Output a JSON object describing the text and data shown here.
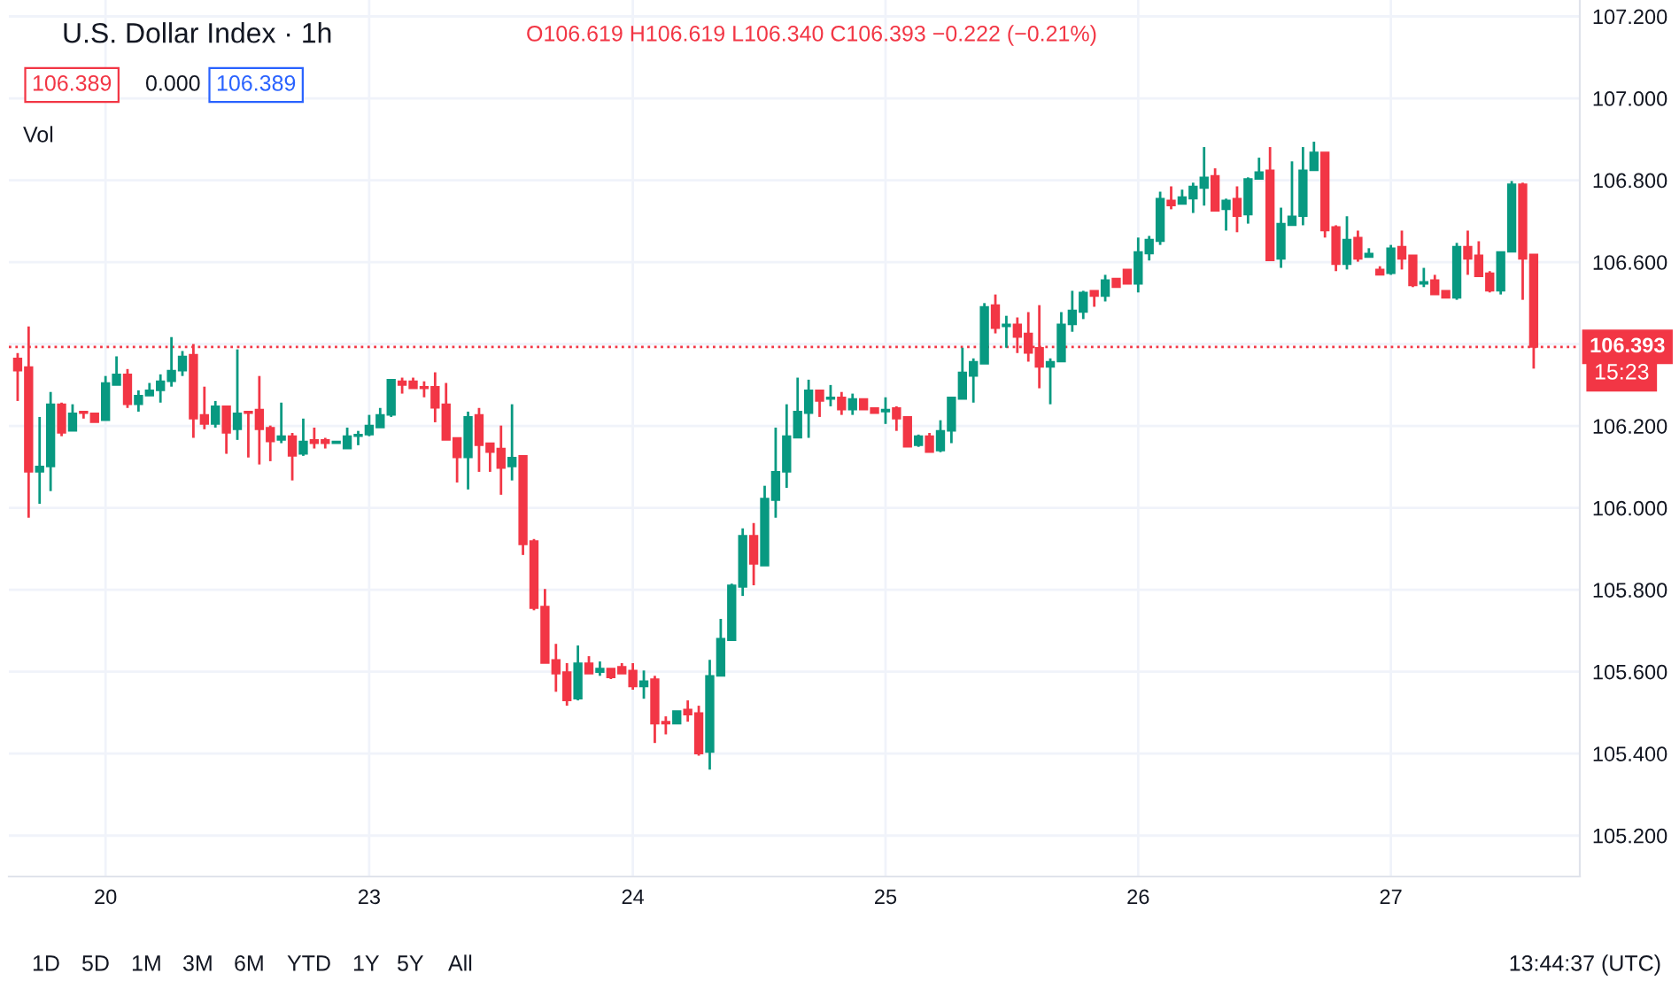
{
  "chart_data": {
    "type": "candlestick",
    "title": "U.S. Dollar Index · 1h",
    "categories": [
      null,
      null,
      null,
      null,
      null,
      null,
      null,
      null,
      "20",
      null,
      null,
      null,
      null,
      null,
      null,
      null,
      null,
      null,
      null,
      null,
      null,
      null,
      null,
      null,
      null,
      null,
      null,
      null,
      null,
      null,
      null,
      null,
      "23",
      null,
      null,
      null,
      null,
      null,
      null,
      null,
      null,
      null,
      null,
      null,
      null,
      null,
      null,
      null,
      null,
      null,
      null,
      null,
      null,
      null,
      null,
      null,
      "24",
      null,
      null,
      null,
      null,
      null,
      null,
      null,
      null,
      null,
      null,
      null,
      null,
      null,
      null,
      null,
      null,
      null,
      null,
      null,
      null,
      null,
      null,
      "25",
      null,
      null,
      null,
      null,
      null,
      null,
      null,
      null,
      null,
      null,
      null,
      null,
      null,
      null,
      null,
      null,
      null,
      null,
      null,
      null,
      null,
      null,
      "26",
      null,
      null,
      null,
      null,
      null,
      null,
      null,
      null,
      null,
      null,
      null,
      null,
      null,
      null,
      null,
      null,
      null,
      null,
      null,
      null,
      null,
      null,
      "27",
      null,
      null,
      null,
      null,
      null,
      null,
      null,
      null,
      null,
      null,
      null,
      null,
      null
    ],
    "ohlc": [
      [
        106.365,
        106.378,
        106.261,
        106.335
      ],
      [
        106.344,
        106.443,
        105.976,
        106.088
      ],
      [
        106.088,
        106.222,
        106.01,
        106.101
      ],
      [
        106.101,
        106.283,
        106.041,
        106.253
      ],
      [
        106.253,
        106.257,
        106.175,
        106.183
      ],
      [
        106.188,
        106.253,
        106.188,
        106.231
      ],
      [
        106.235,
        106.235,
        106.218,
        106.231
      ],
      [
        106.231,
        106.231,
        106.209,
        106.209
      ],
      [
        106.214,
        106.322,
        106.214,
        106.305
      ],
      [
        106.3,
        106.37,
        106.3,
        106.326
      ],
      [
        106.326,
        106.339,
        106.244,
        106.253
      ],
      [
        106.253,
        106.287,
        106.235,
        106.274
      ],
      [
        106.274,
        106.305,
        106.274,
        106.287
      ],
      [
        106.287,
        106.326,
        106.257,
        106.309
      ],
      [
        106.309,
        106.417,
        106.296,
        106.335
      ],
      [
        106.335,
        106.383,
        106.322,
        106.37
      ],
      [
        106.374,
        106.4,
        106.171,
        106.218
      ],
      [
        106.227,
        106.296,
        106.192,
        106.205
      ],
      [
        106.205,
        106.261,
        106.196,
        106.248
      ],
      [
        106.248,
        106.248,
        106.132,
        106.183
      ],
      [
        106.192,
        106.387,
        106.166,
        106.231
      ],
      [
        106.235,
        106.235,
        106.123,
        106.231
      ],
      [
        106.24,
        106.322,
        106.106,
        106.192
      ],
      [
        106.196,
        106.201,
        106.114,
        106.162
      ],
      [
        106.166,
        106.257,
        106.158,
        106.175
      ],
      [
        106.175,
        106.183,
        106.067,
        106.127
      ],
      [
        106.132,
        106.218,
        106.127,
        106.162
      ],
      [
        106.166,
        106.196,
        106.145,
        106.158
      ],
      [
        106.166,
        106.171,
        106.145,
        106.158
      ],
      [
        106.158,
        106.162,
        106.158,
        106.162
      ],
      [
        106.145,
        106.196,
        106.145,
        106.175
      ],
      [
        106.175,
        106.188,
        106.153,
        106.179
      ],
      [
        106.179,
        106.227,
        106.175,
        106.201
      ],
      [
        106.196,
        106.244,
        106.196,
        106.227
      ],
      [
        106.227,
        106.313,
        106.222,
        106.313
      ],
      [
        106.309,
        106.318,
        106.279,
        106.3
      ],
      [
        106.309,
        106.318,
        106.292,
        106.292
      ],
      [
        106.296,
        106.309,
        106.27,
        106.292
      ],
      [
        106.296,
        106.331,
        106.209,
        106.244
      ],
      [
        106.253,
        106.305,
        106.166,
        106.166
      ],
      [
        106.171,
        106.171,
        106.062,
        106.123
      ],
      [
        106.123,
        106.235,
        106.045,
        106.222
      ],
      [
        106.227,
        106.244,
        106.088,
        106.153
      ],
      [
        106.158,
        106.158,
        106.088,
        106.136
      ],
      [
        106.145,
        106.201,
        106.032,
        106.097
      ],
      [
        106.101,
        106.253,
        106.067,
        106.123
      ],
      [
        106.127,
        106.127,
        105.885,
        105.911
      ],
      [
        105.919,
        105.924,
        105.75,
        105.755
      ],
      [
        105.759,
        105.802,
        105.621,
        105.621
      ],
      [
        105.629,
        105.668,
        105.551,
        105.595
      ],
      [
        105.599,
        105.621,
        105.517,
        105.53
      ],
      [
        105.534,
        105.664,
        105.53,
        105.621
      ],
      [
        105.621,
        105.638,
        105.595,
        105.595
      ],
      [
        105.599,
        105.625,
        105.59,
        105.608
      ],
      [
        105.608,
        105.608,
        105.582,
        105.586
      ],
      [
        105.612,
        105.621,
        105.595,
        105.595
      ],
      [
        105.603,
        105.621,
        105.556,
        105.564
      ],
      [
        105.564,
        105.603,
        105.534,
        105.577
      ],
      [
        105.582,
        105.59,
        105.426,
        105.473
      ],
      [
        105.478,
        105.491,
        105.447,
        105.473
      ],
      [
        105.473,
        105.504,
        105.473,
        105.504
      ],
      [
        105.508,
        105.53,
        105.478,
        105.495
      ],
      [
        105.499,
        105.517,
        105.395,
        105.4
      ],
      [
        105.404,
        105.629,
        105.361,
        105.59
      ],
      [
        105.59,
        105.729,
        105.59,
        105.681
      ],
      [
        105.677,
        105.815,
        105.677,
        105.811
      ],
      [
        105.807,
        105.95,
        105.785,
        105.932
      ],
      [
        105.932,
        105.963,
        105.811,
        105.863
      ],
      [
        105.859,
        106.054,
        105.859,
        106.023
      ],
      [
        106.019,
        106.196,
        105.976,
        106.088
      ],
      [
        106.088,
        106.253,
        106.049,
        106.175
      ],
      [
        106.171,
        106.318,
        106.171,
        106.235
      ],
      [
        106.231,
        106.313,
        106.171,
        106.287
      ],
      [
        106.287,
        106.287,
        106.222,
        106.261
      ],
      [
        106.266,
        106.3,
        106.248,
        106.27
      ],
      [
        106.27,
        106.283,
        106.227,
        106.24
      ],
      [
        106.24,
        106.279,
        106.227,
        106.266
      ],
      [
        106.266,
        106.266,
        106.24,
        106.24
      ],
      [
        106.244,
        106.244,
        106.231,
        106.231
      ],
      [
        106.235,
        106.27,
        106.205,
        106.24
      ],
      [
        106.244,
        106.248,
        106.188,
        106.218
      ],
      [
        106.222,
        106.222,
        106.149,
        106.149
      ],
      [
        106.153,
        106.179,
        106.149,
        106.175
      ],
      [
        106.175,
        106.183,
        106.136,
        106.136
      ],
      [
        106.14,
        106.214,
        106.136,
        106.188
      ],
      [
        106.188,
        106.27,
        106.158,
        106.27
      ],
      [
        106.266,
        106.391,
        106.266,
        106.331
      ],
      [
        106.322,
        106.365,
        106.257,
        106.357
      ],
      [
        106.352,
        106.5,
        106.352,
        106.491
      ],
      [
        106.495,
        106.521,
        106.426,
        106.439
      ],
      [
        106.443,
        106.469,
        106.391,
        106.448
      ],
      [
        106.448,
        106.465,
        106.378,
        106.417
      ],
      [
        106.426,
        106.478,
        106.357,
        106.378
      ],
      [
        106.391,
        106.495,
        106.292,
        106.344
      ],
      [
        106.344,
        106.365,
        106.253,
        106.357
      ],
      [
        106.357,
        106.478,
        106.357,
        106.448
      ],
      [
        106.448,
        106.53,
        106.43,
        106.482
      ],
      [
        106.478,
        106.53,
        106.461,
        106.526
      ],
      [
        106.53,
        106.53,
        106.491,
        106.517
      ],
      [
        106.517,
        106.569,
        106.504,
        106.556
      ],
      [
        106.56,
        106.56,
        106.539,
        106.539
      ],
      [
        106.582,
        106.582,
        106.547,
        106.547
      ],
      [
        106.547,
        106.66,
        106.526,
        106.625
      ],
      [
        106.621,
        106.664,
        106.604,
        106.655
      ],
      [
        106.651,
        106.772,
        106.642,
        106.755
      ],
      [
        106.751,
        106.785,
        106.729,
        106.738
      ],
      [
        106.742,
        106.777,
        106.742,
        106.759
      ],
      [
        106.755,
        106.794,
        106.72,
        106.785
      ],
      [
        106.781,
        106.881,
        106.738,
        106.807
      ],
      [
        106.811,
        106.829,
        106.725,
        106.725
      ],
      [
        106.729,
        106.755,
        106.677,
        106.751
      ],
      [
        106.755,
        106.785,
        106.673,
        106.712
      ],
      [
        106.716,
        106.807,
        106.694,
        106.803
      ],
      [
        106.803,
        106.855,
        106.803,
        106.82
      ],
      [
        106.824,
        106.881,
        106.604,
        106.604
      ],
      [
        106.608,
        106.733,
        106.586,
        106.694
      ],
      [
        106.69,
        106.846,
        106.69,
        106.712
      ],
      [
        106.712,
        106.881,
        106.69,
        106.824
      ],
      [
        106.824,
        106.894,
        106.824,
        106.868
      ],
      [
        106.868,
        106.868,
        106.66,
        106.677
      ],
      [
        106.686,
        106.69,
        106.578,
        106.595
      ],
      [
        106.595,
        106.712,
        106.582,
        106.655
      ],
      [
        106.66,
        106.677,
        106.601,
        106.608
      ],
      [
        106.612,
        106.634,
        106.612,
        106.621
      ],
      [
        106.582,
        106.59,
        106.569,
        106.569
      ],
      [
        106.573,
        106.642,
        106.569,
        106.634
      ],
      [
        106.638,
        106.677,
        106.582,
        106.608
      ],
      [
        106.617,
        106.617,
        106.539,
        106.543
      ],
      [
        106.547,
        106.586,
        106.539,
        106.552
      ],
      [
        106.556,
        106.569,
        106.521,
        106.521
      ],
      [
        106.53,
        106.53,
        106.513,
        106.513
      ],
      [
        106.513,
        106.647,
        106.508,
        106.638
      ],
      [
        106.638,
        106.677,
        106.569,
        106.608
      ],
      [
        106.617,
        106.651,
        106.565,
        106.565
      ],
      [
        106.573,
        106.578,
        106.526,
        106.53
      ],
      [
        106.53,
        106.625,
        106.521,
        106.625
      ],
      [
        106.625,
        106.798,
        106.625,
        106.79
      ],
      [
        106.79,
        106.794,
        106.508,
        106.608
      ],
      [
        106.619,
        106.619,
        106.34,
        106.393
      ]
    ],
    "ylim": [
      105.1,
      107.24
    ],
    "yticks": [
      {
        "value": 105.2,
        "label": "105.200"
      },
      {
        "value": 105.4,
        "label": "105.400"
      },
      {
        "value": 105.6,
        "label": "105.600"
      },
      {
        "value": 105.8,
        "label": "105.800"
      },
      {
        "value": 106.0,
        "label": "106.000"
      },
      {
        "value": 106.2,
        "label": "106.200"
      },
      {
        "value": 106.4,
        "label": null
      },
      {
        "value": 106.6,
        "label": "106.600"
      },
      {
        "value": 106.8,
        "label": "106.800"
      },
      {
        "value": 107.0,
        "label": "107.000"
      },
      {
        "value": 107.2,
        "label": "107.200"
      }
    ],
    "grid": true,
    "ref_lines": [
      {
        "axis": "y",
        "value": 106.393,
        "label": "106.393",
        "color": "#f23645",
        "line_style": "dotted"
      }
    ],
    "annotations": [
      "O106.619 H106.619 L106.340 C106.393 −0.222 (−0.21%)",
      "106.389",
      "0.000",
      "106.389",
      "Vol",
      "15:23",
      "1D",
      "5D",
      "1M",
      "3M",
      "6M",
      "YTD",
      "1Y",
      "5Y",
      "All",
      "13:44:37 (UTC)"
    ]
  }
}
